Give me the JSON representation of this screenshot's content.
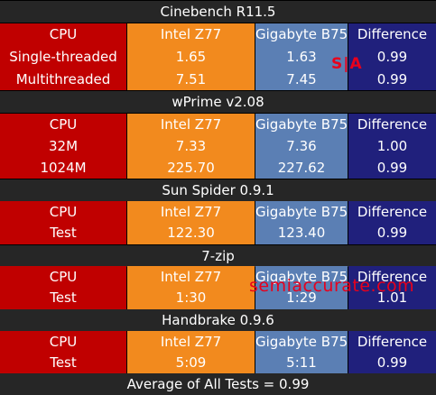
{
  "sections": [
    {
      "title": "Cinebench R11.5",
      "header": {
        "cpu": "CPU",
        "intel": "Intel Z77",
        "gigabyte": "Gigabyte B75",
        "difference": "Difference"
      },
      "rows": [
        {
          "cpu": "Single-threaded",
          "intel": "1.65",
          "gigabyte": "1.63",
          "difference": "0.99"
        },
        {
          "cpu": "Multithreaded",
          "intel": "7.51",
          "gigabyte": "7.45",
          "difference": "0.99"
        }
      ]
    },
    {
      "title": "wPrime v2.08",
      "header": {
        "cpu": "CPU",
        "intel": "Intel Z77",
        "gigabyte": "Gigabyte B75",
        "difference": "Difference"
      },
      "rows": [
        {
          "cpu": "32M",
          "intel": "7.33",
          "gigabyte": "7.36",
          "difference": "1.00"
        },
        {
          "cpu": "1024M",
          "intel": "225.70",
          "gigabyte": "227.62",
          "difference": "0.99"
        }
      ]
    },
    {
      "title": "Sun Spider 0.9.1",
      "header": {
        "cpu": "CPU",
        "intel": "Intel Z77",
        "gigabyte": "Gigabyte B75",
        "difference": "Difference"
      },
      "rows": [
        {
          "cpu": "Test",
          "intel": "122.30",
          "gigabyte": "123.40",
          "difference": "0.99"
        }
      ]
    },
    {
      "title": "7-zip",
      "header": {
        "cpu": "CPU",
        "intel": "Intel Z77",
        "gigabyte": "Gigabyte B75",
        "difference": "Difference"
      },
      "rows": [
        {
          "cpu": "Test",
          "intel": "1:30",
          "gigabyte": "1:29",
          "difference": "1.01"
        }
      ]
    },
    {
      "title": "Handbrake 0.9.6",
      "header": {
        "cpu": "CPU",
        "intel": "Intel Z77",
        "gigabyte": "Gigabyte B75",
        "difference": "Difference"
      },
      "rows": [
        {
          "cpu": "Test",
          "intel": "5:09",
          "gigabyte": "5:11",
          "difference": "0.99"
        }
      ]
    }
  ],
  "footer": "Average of All Tests = 0.99",
  "watermark_logo": "S|A",
  "watermark_site": "semiaccurate.com",
  "colors": {
    "cpu": "#c00000",
    "intel": "#f28a1e",
    "gigabyte": "#5b7fb4",
    "difference": "#20207c",
    "title_bar": "#262626",
    "watermark": "#e8001c"
  }
}
